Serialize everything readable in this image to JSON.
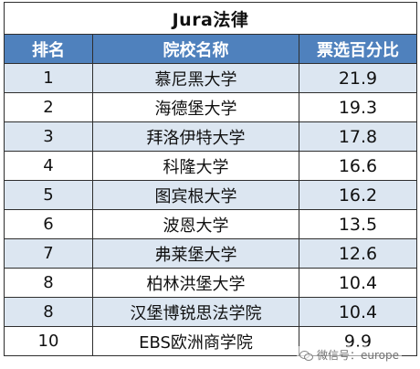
{
  "table": {
    "title": "Jura法律",
    "headers": {
      "rank": "排名",
      "school": "院校名称",
      "percent": "票选百分比"
    },
    "rows": [
      {
        "rank": "1",
        "school": "慕尼黑大学",
        "percent": "21.9"
      },
      {
        "rank": "2",
        "school": "海德堡大学",
        "percent": "19.3"
      },
      {
        "rank": "3",
        "school": "拜洛伊特大学",
        "percent": "17.8"
      },
      {
        "rank": "4",
        "school": "科隆大学",
        "percent": "16.6"
      },
      {
        "rank": "5",
        "school": "图宾根大学",
        "percent": "16.2"
      },
      {
        "rank": "6",
        "school": "波恩大学",
        "percent": "13.5"
      },
      {
        "rank": "7",
        "school": "弗莱堡大学",
        "percent": "12.6"
      },
      {
        "rank": "8",
        "school": "柏林洪堡大学",
        "percent": "10.4"
      },
      {
        "rank": "8",
        "school": "汉堡博锐思法学院",
        "percent": "10.4"
      },
      {
        "rank": "10",
        "school": "EBS欧洲商学院",
        "percent": "9.9"
      }
    ]
  },
  "watermark": {
    "text": "微信号：europe",
    "icon": "wechat-icon"
  },
  "colors": {
    "header_bg": "#4f81bd",
    "band_bg": "#dce6f1",
    "border": "#2e2e2e"
  }
}
